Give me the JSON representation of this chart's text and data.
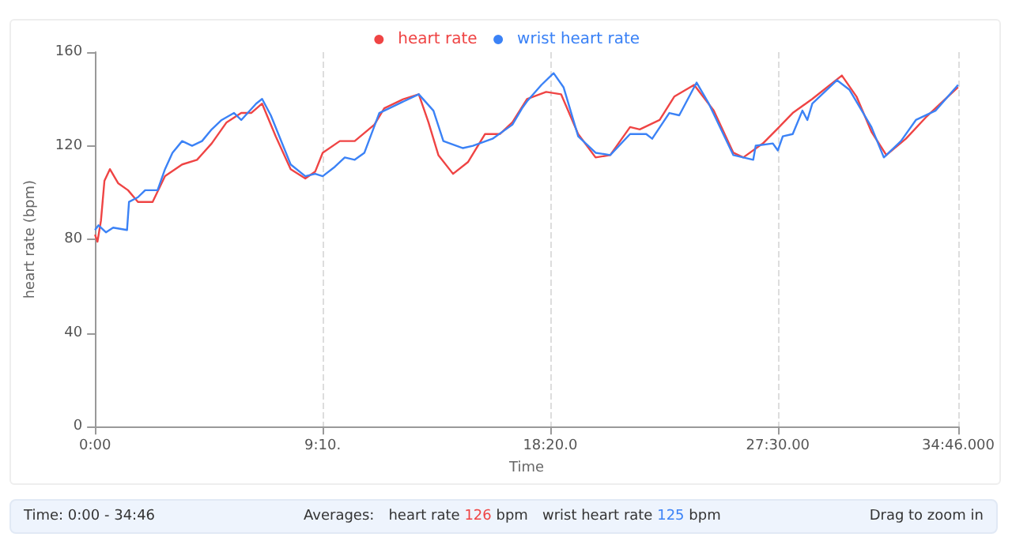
{
  "chart_data": {
    "type": "line",
    "xlabel": "Time",
    "ylabel": "heart rate (bpm)",
    "xlim": [
      0,
      34.767
    ],
    "xticks": [
      {
        "value": 0,
        "label": "0:00"
      },
      {
        "value": 9.1667,
        "label": "9:10."
      },
      {
        "value": 18.333,
        "label": "18:20.0"
      },
      {
        "value": 27.5,
        "label": "27:30.00"
      },
      {
        "value": 34.767,
        "label": "34:46.000"
      }
    ],
    "ylim": [
      0,
      160
    ],
    "yticks": [
      0,
      40,
      80,
      120,
      160
    ],
    "grid": "x",
    "legend": "top",
    "marker": "none",
    "line_style": "solid",
    "series": [
      {
        "name": "heart rate",
        "color": "#ef4444",
        "x": [
          0,
          0.1,
          0.24,
          0.38,
          0.6,
          0.93,
          1.33,
          1.73,
          2.32,
          2.82,
          3.51,
          4.11,
          4.7,
          5.3,
          5.89,
          6.29,
          6.73,
          7.28,
          7.88,
          8.47,
          8.87,
          9.17,
          9.86,
          10.46,
          11.25,
          11.65,
          12.44,
          13.04,
          13.43,
          13.83,
          14.42,
          15.02,
          15.71,
          16.31,
          16.81,
          17.4,
          18.17,
          18.77,
          19.46,
          20.16,
          20.75,
          21.55,
          21.94,
          22.74,
          23.33,
          24.13,
          24.92,
          25.71,
          26.11,
          26.9,
          27.46,
          28.1,
          28.89,
          30.08,
          30.67,
          31.27,
          31.87,
          32.66,
          33.45,
          34.05,
          34.76
        ],
        "values": [
          82,
          79,
          88,
          105,
          110,
          104,
          101,
          96,
          96,
          107,
          112,
          114,
          121,
          130,
          134,
          134,
          138,
          124,
          110,
          106,
          109,
          117,
          122,
          122,
          129,
          136,
          140,
          142,
          130,
          116,
          108,
          113,
          125,
          125,
          130,
          140,
          143,
          142,
          125,
          115,
          116,
          128,
          127,
          131,
          141,
          146,
          135,
          117,
          115,
          121,
          127,
          134,
          140,
          150,
          141,
          126,
          116,
          123,
          132,
          138,
          145
        ]
      },
      {
        "name": "wrist heart rate",
        "color": "#3b82f6",
        "x": [
          0,
          0.14,
          0.44,
          0.73,
          1.29,
          1.37,
          1.73,
          2.02,
          2.52,
          2.82,
          3.12,
          3.51,
          3.91,
          4.31,
          4.7,
          5.1,
          5.6,
          5.89,
          6.49,
          6.73,
          7.08,
          7.88,
          8.47,
          8.87,
          9.17,
          9.66,
          10.06,
          10.46,
          10.85,
          11.45,
          11.85,
          12.44,
          13.04,
          13.63,
          14.03,
          14.82,
          15.22,
          16.01,
          16.81,
          17.2,
          17.4,
          17.98,
          18.47,
          18.87,
          19.46,
          20.16,
          20.75,
          21.55,
          22.2,
          22.44,
          23.13,
          23.53,
          24.23,
          24.72,
          25.71,
          26.51,
          26.61,
          27.3,
          27.5,
          27.7,
          28.1,
          28.49,
          28.69,
          28.89,
          29.88,
          30.38,
          30.77,
          31.27,
          31.77,
          32.46,
          33.06,
          33.85,
          34.76
        ],
        "values": [
          84,
          86,
          83,
          85,
          84,
          96,
          98,
          101,
          101,
          110,
          117,
          122,
          120,
          122,
          127,
          131,
          134,
          131,
          138,
          140,
          133,
          112,
          107,
          108,
          107,
          111,
          115,
          114,
          117,
          134,
          136,
          139,
          142,
          135,
          122,
          119,
          120,
          123,
          129,
          136,
          139,
          146,
          151,
          145,
          124,
          117,
          116,
          125,
          125,
          123,
          134,
          133,
          147,
          138,
          116,
          114,
          120,
          121,
          118,
          124,
          125,
          135,
          131,
          138,
          148,
          144,
          137,
          128,
          115,
          122,
          131,
          135,
          146
        ]
      }
    ],
    "annotations": [
      "Time: 0:00 - 34:46",
      "Averages:",
      "heart rate 126 bpm",
      "wrist heart rate 125 bpm",
      "Drag to zoom in"
    ]
  }
}
